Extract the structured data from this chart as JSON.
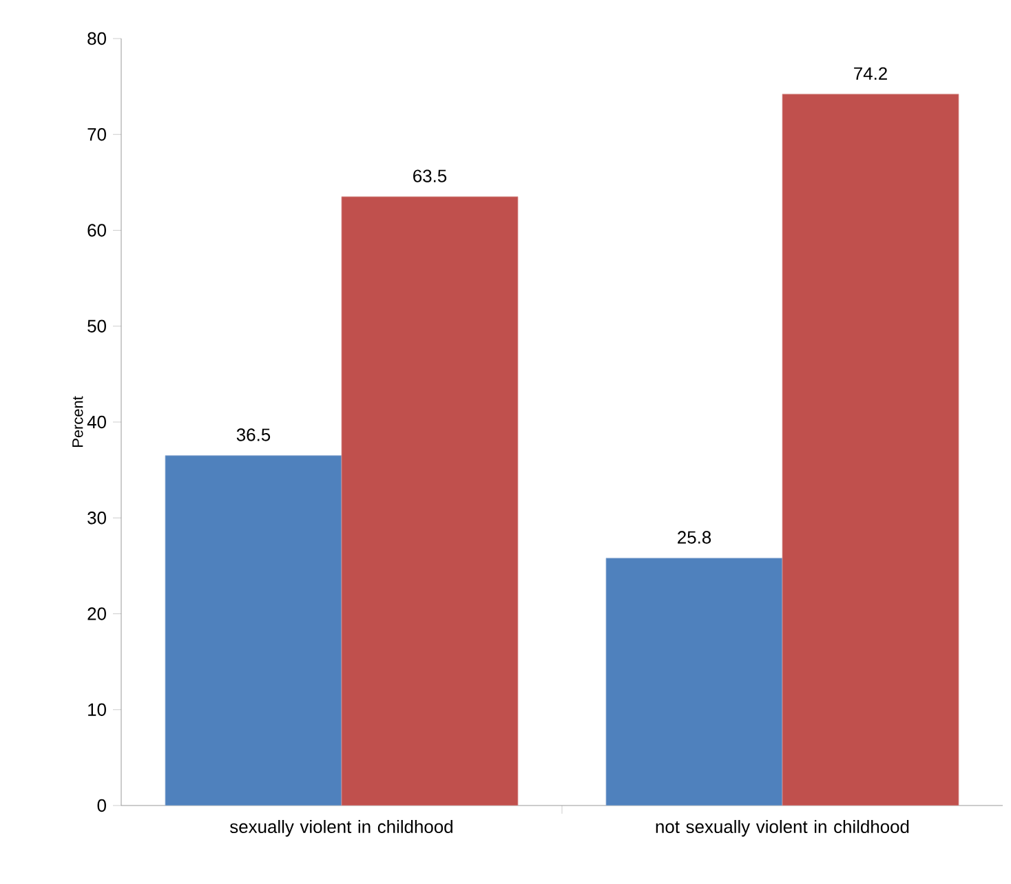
{
  "chart_data": {
    "type": "bar",
    "ylabel": "Percent",
    "categories": [
      "sexually violent in childhood",
      "not sexually violent in childhood"
    ],
    "series": [
      {
        "color": "#4f81bd",
        "values": [
          36.5,
          25.8
        ]
      },
      {
        "color": "#c0504d",
        "values": [
          63.5,
          74.2
        ]
      }
    ],
    "ylim": [
      0,
      80
    ],
    "yticks": [
      0,
      10,
      20,
      30,
      40,
      50,
      60,
      70,
      80
    ],
    "data_labels": true,
    "grid": false
  }
}
